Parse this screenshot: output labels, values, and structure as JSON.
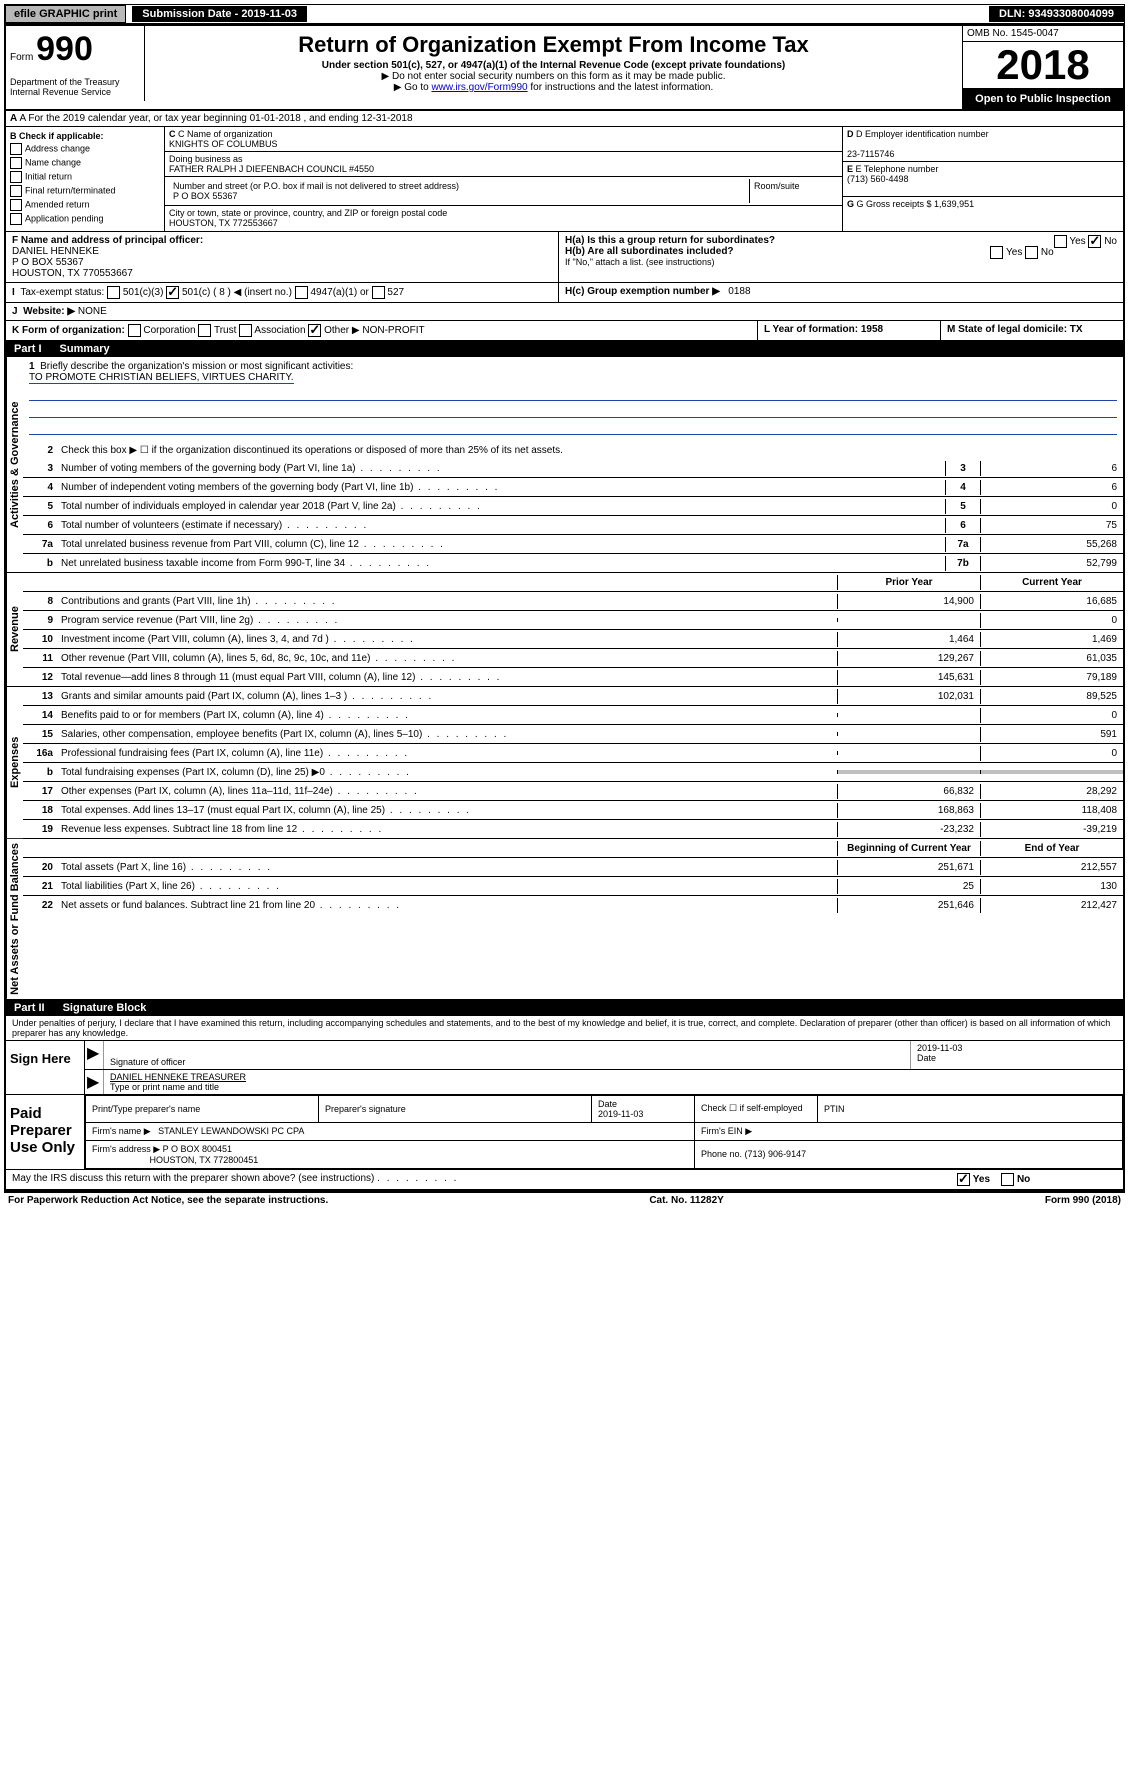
{
  "topbar": {
    "efile": "efile GRAPHIC print",
    "submission": "Submission Date - 2019-11-03",
    "dln": "DLN: 93493308004099"
  },
  "header": {
    "form_prefix": "Form",
    "form_num": "990",
    "title": "Return of Organization Exempt From Income Tax",
    "sub1": "Under section 501(c), 527, or 4947(a)(1) of the Internal Revenue Code (except private foundations)",
    "sub2": "▶ Do not enter social security numbers on this form as it may be made public.",
    "sub3_pre": "▶ Go to ",
    "sub3_link": "www.irs.gov/Form990",
    "sub3_post": " for instructions and the latest information.",
    "omb": "OMB No. 1545-0047",
    "year": "2018",
    "open": "Open to Public Inspection",
    "dept1": "Department of the Treasury",
    "dept2": "Internal Revenue Service"
  },
  "row_a": "A For the 2019 calendar year, or tax year beginning 01-01-2018   , and ending 12-31-2018",
  "section_b": {
    "label": "B Check if applicable:",
    "opts": [
      "Address change",
      "Name change",
      "Initial return",
      "Final return/terminated",
      "Amended return",
      "Application pending"
    ],
    "c_label": "C Name of organization",
    "c_name": "KNIGHTS OF COLUMBUS",
    "dba_label": "Doing business as",
    "dba": "FATHER RALPH J DIEFENBACH COUNCIL #4550",
    "addr_label": "Number and street (or P.O. box if mail is not delivered to street address)",
    "room_label": "Room/suite",
    "addr": "P O BOX 55367",
    "city_label": "City or town, state or province, country, and ZIP or foreign postal code",
    "city": "HOUSTON, TX  772553667",
    "d_label": "D Employer identification number",
    "d_ein": "23-7115746",
    "e_label": "E Telephone number",
    "e_phone": "(713) 560-4498",
    "g_label": "G Gross receipts $ 1,639,951",
    "f_label": "F  Name and address of principal officer:",
    "f_name": "DANIEL HENNEKE",
    "f_addr1": "P O BOX 55367",
    "f_addr2": "HOUSTON, TX  770553667",
    "ha_label": "H(a)  Is this a group return for subordinates?",
    "ha_yes": "Yes",
    "ha_no": "No",
    "hb_label": "H(b)  Are all subordinates included?",
    "hb_note": "If \"No,\" attach a list. (see instructions)",
    "hc_label": "H(c)  Group exemption number ▶",
    "hc_val": "0188",
    "i_label": "Tax-exempt status:",
    "i_501c3": "501(c)(3)",
    "i_501c": "501(c) ( 8 ) ◀ (insert no.)",
    "i_4947": "4947(a)(1) or",
    "i_527": "527",
    "j_label": "Website: ▶",
    "j_val": "NONE",
    "k_label": "K Form of organization:",
    "k_opts": [
      "Corporation",
      "Trust",
      "Association",
      "Other ▶"
    ],
    "k_other": "NON-PROFIT",
    "l_label": "L Year of formation: 1958",
    "m_label": "M State of legal domicile: TX"
  },
  "part1": {
    "header": "Part I",
    "title": "Summary",
    "q1": "Briefly describe the organization's mission or most significant activities:",
    "mission": "TO PROMOTE CHRISTIAN BELIEFS, VIRTUES CHARITY.",
    "q2": "Check this box ▶ ☐  if the organization discontinued its operations or disposed of more than 25% of its net assets.",
    "lines_gov": [
      {
        "n": "3",
        "d": "Number of voting members of the governing body (Part VI, line 1a)",
        "box": "3",
        "v": "6"
      },
      {
        "n": "4",
        "d": "Number of independent voting members of the governing body (Part VI, line 1b)",
        "box": "4",
        "v": "6"
      },
      {
        "n": "5",
        "d": "Total number of individuals employed in calendar year 2018 (Part V, line 2a)",
        "box": "5",
        "v": "0"
      },
      {
        "n": "6",
        "d": "Total number of volunteers (estimate if necessary)",
        "box": "6",
        "v": "75"
      },
      {
        "n": "7a",
        "d": "Total unrelated business revenue from Part VIII, column (C), line 12",
        "box": "7a",
        "v": "55,268"
      },
      {
        "n": "b",
        "d": "Net unrelated business taxable income from Form 990-T, line 34",
        "box": "7b",
        "v": "52,799"
      }
    ],
    "col_headers": {
      "prior": "Prior Year",
      "current": "Current Year",
      "begin": "Beginning of Current Year",
      "end": "End of Year"
    },
    "revenue": [
      {
        "n": "8",
        "d": "Contributions and grants (Part VIII, line 1h)",
        "p": "14,900",
        "c": "16,685"
      },
      {
        "n": "9",
        "d": "Program service revenue (Part VIII, line 2g)",
        "p": "",
        "c": "0"
      },
      {
        "n": "10",
        "d": "Investment income (Part VIII, column (A), lines 3, 4, and 7d )",
        "p": "1,464",
        "c": "1,469"
      },
      {
        "n": "11",
        "d": "Other revenue (Part VIII, column (A), lines 5, 6d, 8c, 9c, 10c, and 11e)",
        "p": "129,267",
        "c": "61,035"
      },
      {
        "n": "12",
        "d": "Total revenue—add lines 8 through 11 (must equal Part VIII, column (A), line 12)",
        "p": "145,631",
        "c": "79,189"
      }
    ],
    "expenses": [
      {
        "n": "13",
        "d": "Grants and similar amounts paid (Part IX, column (A), lines 1–3 )",
        "p": "102,031",
        "c": "89,525"
      },
      {
        "n": "14",
        "d": "Benefits paid to or for members (Part IX, column (A), line 4)",
        "p": "",
        "c": "0"
      },
      {
        "n": "15",
        "d": "Salaries, other compensation, employee benefits (Part IX, column (A), lines 5–10)",
        "p": "",
        "c": "591"
      },
      {
        "n": "16a",
        "d": "Professional fundraising fees (Part IX, column (A), line 11e)",
        "p": "",
        "c": "0"
      },
      {
        "n": "b",
        "d": "Total fundraising expenses (Part IX, column (D), line 25) ▶0",
        "p": "gray",
        "c": "gray"
      },
      {
        "n": "17",
        "d": "Other expenses (Part IX, column (A), lines 11a–11d, 11f–24e)",
        "p": "66,832",
        "c": "28,292"
      },
      {
        "n": "18",
        "d": "Total expenses. Add lines 13–17 (must equal Part IX, column (A), line 25)",
        "p": "168,863",
        "c": "118,408"
      },
      {
        "n": "19",
        "d": "Revenue less expenses. Subtract line 18 from line 12",
        "p": "-23,232",
        "c": "-39,219"
      }
    ],
    "netassets": [
      {
        "n": "20",
        "d": "Total assets (Part X, line 16)",
        "p": "251,671",
        "c": "212,557"
      },
      {
        "n": "21",
        "d": "Total liabilities (Part X, line 26)",
        "p": "25",
        "c": "130"
      },
      {
        "n": "22",
        "d": "Net assets or fund balances. Subtract line 21 from line 20",
        "p": "251,646",
        "c": "212,427"
      }
    ],
    "vlabels": {
      "gov": "Activities & Governance",
      "rev": "Revenue",
      "exp": "Expenses",
      "net": "Net Assets or Fund Balances"
    }
  },
  "part2": {
    "header": "Part II",
    "title": "Signature Block",
    "perjury": "Under penalties of perjury, I declare that I have examined this return, including accompanying schedules and statements, and to the best of my knowledge and belief, it is true, correct, and complete. Declaration of preparer (other than officer) is based on all information of which preparer has any knowledge.",
    "sign_here": "Sign Here",
    "sig_officer": "Signature of officer",
    "sig_date": "2019-11-03",
    "date_label": "Date",
    "officer_name": "DANIEL HENNEKE  TREASURER",
    "officer_name_label": "Type or print name and title",
    "paid": "Paid Preparer Use Only",
    "prep_name_label": "Print/Type preparer's name",
    "prep_sig_label": "Preparer's signature",
    "prep_date_label": "Date",
    "prep_date": "2019-11-03",
    "check_self": "Check ☐ if self-employed",
    "ptin": "PTIN",
    "firm_name_label": "Firm's name     ▶",
    "firm_name": "STANLEY LEWANDOWSKI PC CPA",
    "firm_ein_label": "Firm's EIN ▶",
    "firm_addr_label": "Firm's address ▶",
    "firm_addr1": "P O BOX 800451",
    "firm_addr2": "HOUSTON, TX  772800451",
    "firm_phone_label": "Phone no. (713) 906-9147",
    "discuss": "May the IRS discuss this return with the preparer shown above? (see instructions)",
    "discuss_yes": "Yes",
    "discuss_no": "No"
  },
  "footer": {
    "left": "For Paperwork Reduction Act Notice, see the separate instructions.",
    "mid": "Cat. No. 11282Y",
    "right": "Form 990 (2018)"
  }
}
